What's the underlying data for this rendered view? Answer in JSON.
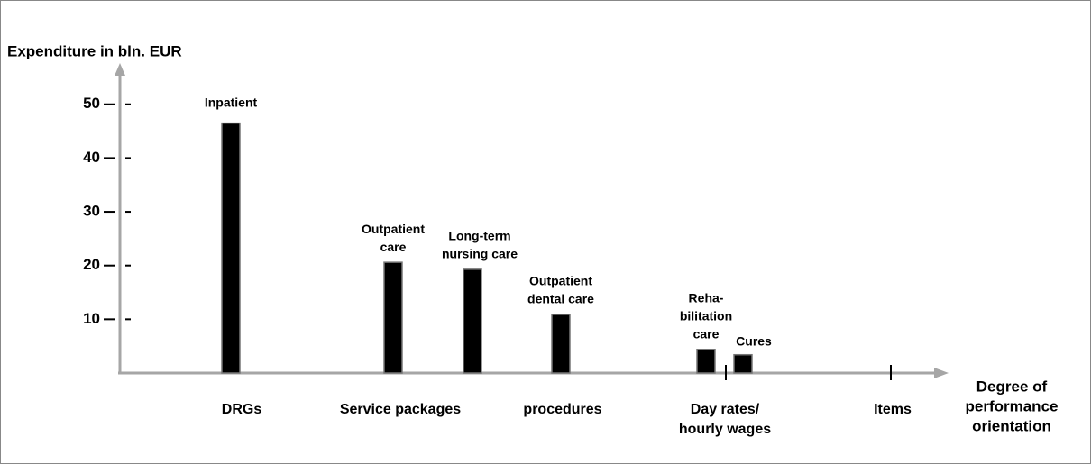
{
  "chart_data": {
    "type": "bar",
    "ylabel": "Expenditure in bln. EUR",
    "xlabel": [
      "Degree of",
      "performance",
      "orientation"
    ],
    "categories": [
      [
        "DRGs"
      ],
      [
        "Service packages"
      ],
      [
        "procedures"
      ],
      [
        "Day rates/",
        "hourly wages"
      ],
      [
        "Items"
      ]
    ],
    "bars": [
      {
        "label": [
          "Inpatient"
        ],
        "value": 46.5
      },
      {
        "label": [
          "Outpatient",
          "care"
        ],
        "value": 20.6
      },
      {
        "label": [
          "Long-term",
          "nursing care"
        ],
        "value": 19.3
      },
      {
        "label": [
          "Outpatient",
          "dental care"
        ],
        "value": 10.9
      },
      {
        "label": [
          "Reha-",
          "bilitation",
          "care"
        ],
        "value": 4.4
      },
      {
        "label": [
          "Cures"
        ],
        "value": 3.4
      }
    ],
    "color": "#000000",
    "ylim": [
      0,
      57
    ],
    "yticks": [
      10,
      20,
      30,
      40,
      50
    ]
  }
}
